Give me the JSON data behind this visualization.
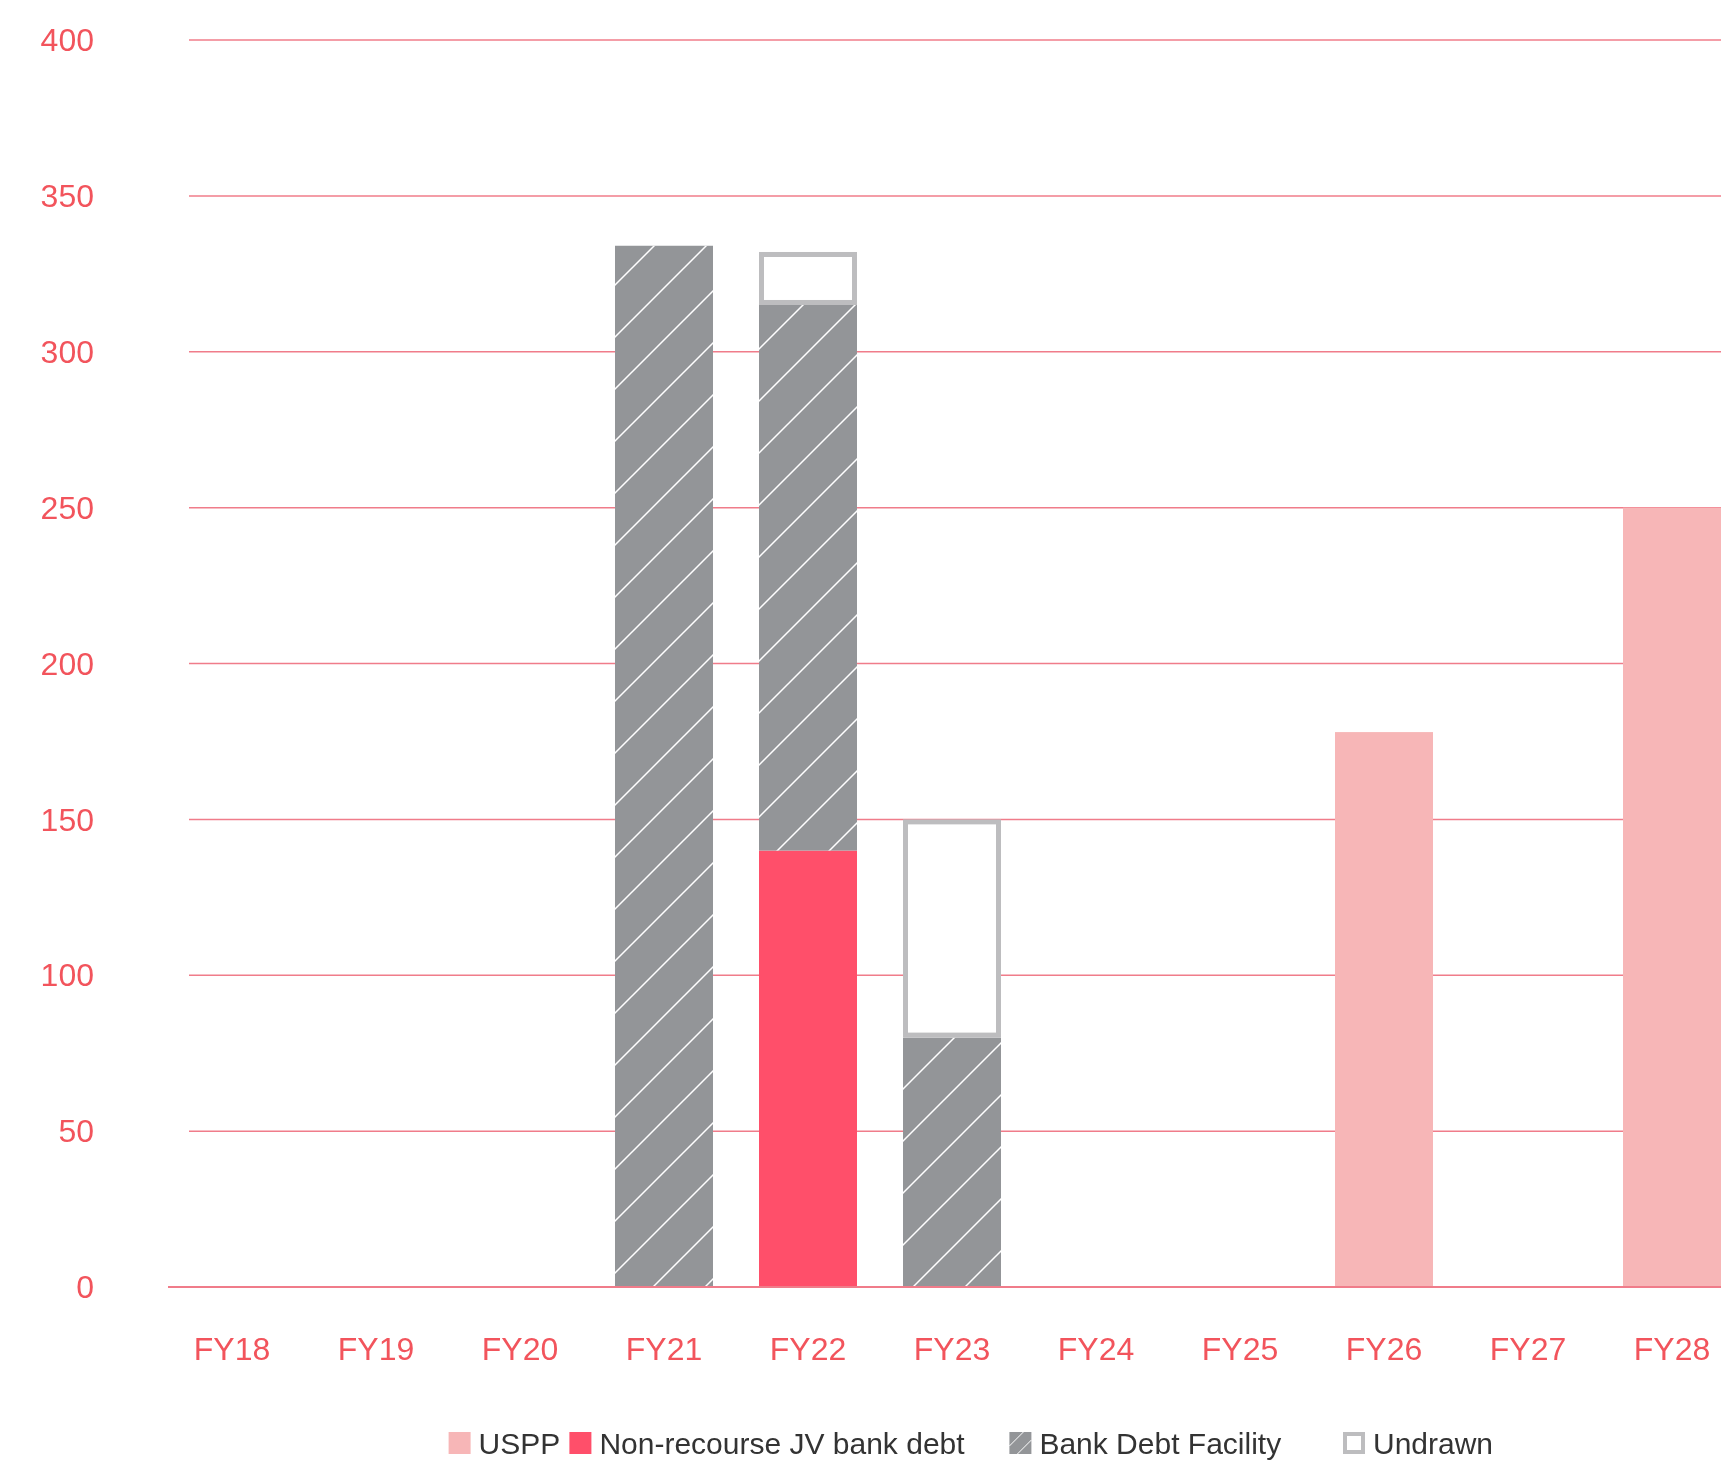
{
  "chart_data": {
    "type": "bar",
    "stacked": true,
    "categories": [
      "FY18",
      "FY19",
      "FY20",
      "FY21",
      "FY22",
      "FY23",
      "FY24",
      "FY25",
      "FY26",
      "FY27",
      "FY28"
    ],
    "series": [
      {
        "name": "USPP",
        "color": "#f7b6b7",
        "values": [
          0,
          0,
          0,
          0,
          0,
          0,
          0,
          0,
          178,
          0,
          250
        ]
      },
      {
        "name": "Non-recourse JV bank debt",
        "color": "#ff4f6a",
        "values": [
          0,
          0,
          0,
          0,
          140,
          0,
          0,
          0,
          0,
          0,
          0
        ]
      },
      {
        "name": "Bank Debt Facility",
        "color": "#939598",
        "values": [
          0,
          0,
          0,
          334,
          175,
          80,
          0,
          0,
          0,
          0,
          0
        ]
      },
      {
        "name": "Undrawn",
        "color": "#bdbdbf",
        "values": [
          0,
          0,
          0,
          0,
          17,
          70,
          0,
          0,
          0,
          0,
          0
        ]
      }
    ],
    "ylim": [
      0,
      400
    ],
    "yticks": [
      0,
      50,
      100,
      150,
      200,
      250,
      300,
      350,
      400
    ],
    "grid": "y",
    "legend": "bottom"
  }
}
